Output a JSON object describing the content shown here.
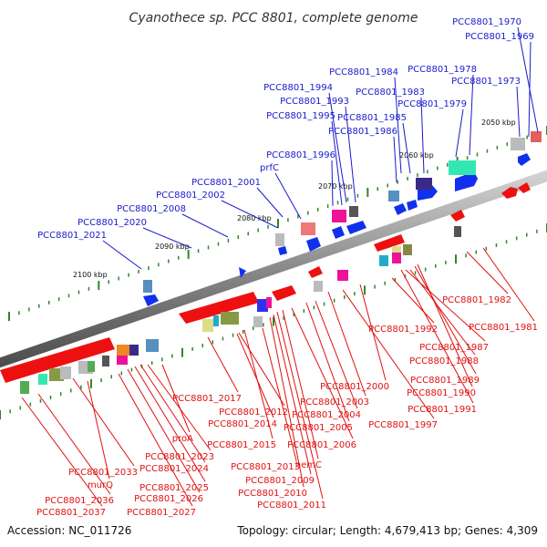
{
  "title": "Cyanothece sp. PCC 8801, complete genome",
  "footer": {
    "accession": "Accession: NC_011726",
    "summary": "Topology: circular; Length: 4,679,413 bp; Genes: 4,309"
  },
  "colors": {
    "forward_label": "#1a1acc",
    "reverse_label": "#e01010",
    "forward_gene": "#1030ee",
    "reverse_gene": "#ee1010",
    "backbone": "#8a8a8a",
    "tick": "#2a8a2a"
  },
  "ticks": [
    "2050 kbp",
    "2060 kbp",
    "2070 kbp",
    "2080 kbp",
    "2090 kbp",
    "2100 kbp"
  ],
  "forward_labels": [
    "PCC8801_1970",
    "PCC8801_1969",
    "PCC8801_1978",
    "PCC8801_1973",
    "PCC8801_1984",
    "PCC8801_1983",
    "PCC8801_1979",
    "PCC8801_1994",
    "PCC8801_1993",
    "PCC8801_1995",
    "PCC8801_1985",
    "PCC8801_1986",
    "PCC8801_1996",
    "prfC",
    "PCC8801_2001",
    "PCC8801_2002",
    "PCC8801_2008",
    "PCC8801_2020",
    "PCC8801_2021"
  ],
  "reverse_labels_right": [
    "PCC8801_1982",
    "PCC8801_1981",
    "PCC8801_1992",
    "PCC8801_1987",
    "PCC8801_1988",
    "PCC8801_1989",
    "PCC8801_1990",
    "PCC8801_1991",
    "PCC8801_2000",
    "PCC8801_2003",
    "PCC8801_2004",
    "PCC8801_2005",
    "PCC8801_2006",
    "PCC8801_1997"
  ],
  "reverse_labels_left": [
    "PCC8801_2017",
    "PCC8801_2012",
    "PCC8801_2014",
    "PCC8801_2015",
    "hemC",
    "PCC8801_2013",
    "PCC8801_2009",
    "PCC8801_2010",
    "PCC8801_2011",
    "proA",
    "PCC8801_2023",
    "PCC8801_2024",
    "PCC8801_2033",
    "murQ",
    "PCC8801_2025",
    "PCC8801_2026",
    "PCC8801_2036",
    "PCC8801_2037",
    "PCC8801_2027"
  ]
}
